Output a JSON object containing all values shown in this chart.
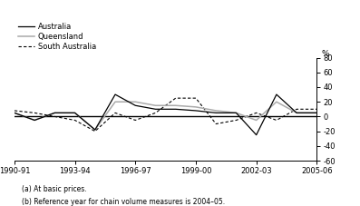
{
  "x_labels": [
    "1990-91",
    "1993-94",
    "1996-97",
    "1999-00",
    "2002-03",
    "2005-06"
  ],
  "x_ticks": [
    0,
    3,
    6,
    9,
    12,
    15
  ],
  "ylim": [
    -60,
    80
  ],
  "yticks": [
    -60,
    -40,
    -20,
    0,
    20,
    40,
    60,
    80
  ],
  "australia_color": "#000000",
  "queensland_color": "#aaaaaa",
  "south_australia_color": "#000000",
  "footnote1": "(a) At basic prices.",
  "footnote2": "(b) Reference year for chain volume measures is 2004–05.",
  "ylabel": "%",
  "legend_entries": [
    "Australia",
    "Queensland",
    "South Australia"
  ],
  "australia_y": [
    5,
    -5,
    5,
    5,
    -18,
    30,
    15,
    10,
    10,
    8,
    5,
    5,
    -25,
    30,
    5,
    5
  ],
  "queensland_y": [
    5,
    -5,
    5,
    5,
    -18,
    20,
    20,
    15,
    15,
    13,
    8,
    5,
    -5,
    20,
    5,
    5
  ],
  "south_aus_y": [
    8,
    5,
    0,
    -5,
    -20,
    5,
    -5,
    5,
    25,
    25,
    -10,
    -5,
    5,
    -5,
    10,
    10
  ]
}
